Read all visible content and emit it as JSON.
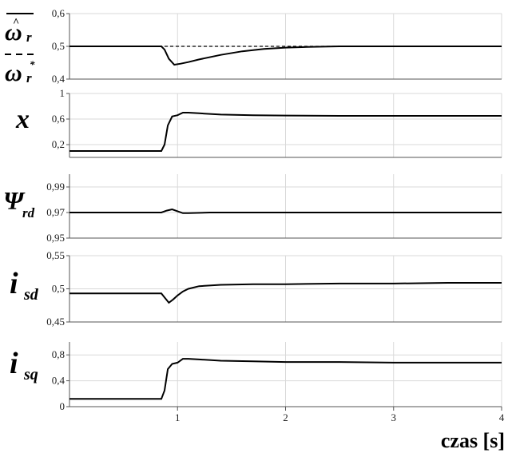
{
  "chart_data": {
    "type": "line",
    "xlabel": "czas [s]",
    "x_ticks": [
      "1",
      "2",
      "3",
      "4"
    ],
    "xlim": [
      0,
      4
    ],
    "panels": [
      {
        "id": "omega",
        "ylim": [
          0.4,
          0.6
        ],
        "yticks": [
          0.4,
          0.5,
          0.6
        ],
        "ytick_labels": [
          "0,4",
          "0,5",
          "0,6"
        ],
        "series": [
          {
            "style": "solid",
            "x": [
              0,
              0.85,
              0.88,
              0.92,
              0.97,
              1.03,
              1.1,
              1.2,
              1.4,
              1.6,
              1.8,
              2.0,
              2.2,
              2.5,
              3.0,
              4.0
            ],
            "y": [
              0.5,
              0.5,
              0.49,
              0.462,
              0.444,
              0.447,
              0.452,
              0.46,
              0.474,
              0.485,
              0.492,
              0.496,
              0.498,
              0.5,
              0.5,
              0.5
            ]
          },
          {
            "style": "dashed",
            "x": [
              0,
              4.0
            ],
            "y": [
              0.5,
              0.5
            ]
          }
        ]
      },
      {
        "id": "x",
        "label": "x",
        "ylim": [
          0,
          1
        ],
        "yticks": [
          0.2,
          0.6,
          1
        ],
        "ytick_labels": [
          "0,2",
          "0,6",
          "1"
        ],
        "series": [
          {
            "style": "solid",
            "x": [
              0,
              0.85,
              0.88,
              0.91,
              0.95,
              1.0,
              1.05,
              1.1,
              1.2,
              1.4,
              1.7,
              2.0,
              2.5,
              3.0,
              3.5,
              4.0
            ],
            "y": [
              0.1,
              0.1,
              0.2,
              0.5,
              0.64,
              0.66,
              0.7,
              0.7,
              0.69,
              0.67,
              0.66,
              0.655,
              0.65,
              0.65,
              0.65,
              0.65
            ]
          }
        ]
      },
      {
        "id": "psi",
        "ylim": [
          0.95,
          1.0
        ],
        "yticks": [
          0.95,
          0.97,
          0.99
        ],
        "ytick_labels": [
          "0,95",
          "0,97",
          "0,99"
        ],
        "series": [
          {
            "style": "solid",
            "x": [
              0,
              0.85,
              0.9,
              0.95,
              1.0,
              1.05,
              1.1,
              1.3,
              2.0,
              3.0,
              4.0
            ],
            "y": [
              0.97,
              0.97,
              0.9715,
              0.9725,
              0.971,
              0.9695,
              0.9695,
              0.97,
              0.97,
              0.97,
              0.97
            ]
          }
        ]
      },
      {
        "id": "isd",
        "ylim": [
          0.45,
          0.55
        ],
        "yticks": [
          0.45,
          0.5,
          0.55
        ],
        "ytick_labels": [
          "0,45",
          "0,5",
          "0,55"
        ],
        "series": [
          {
            "style": "solid",
            "x": [
              0,
              0.85,
              0.88,
              0.92,
              0.96,
              1.0,
              1.05,
              1.1,
              1.2,
              1.4,
              1.7,
              2.0,
              2.5,
              3.0,
              3.5,
              4.0
            ],
            "y": [
              0.493,
              0.493,
              0.487,
              0.479,
              0.484,
              0.49,
              0.496,
              0.5,
              0.504,
              0.506,
              0.507,
              0.507,
              0.508,
              0.508,
              0.509,
              0.509
            ]
          }
        ]
      },
      {
        "id": "isq",
        "ylim": [
          0,
          1.0
        ],
        "yticks": [
          0,
          0.4,
          0.8
        ],
        "ytick_labels": [
          "0",
          "0,4",
          "0,8"
        ],
        "series": [
          {
            "style": "solid",
            "x": [
              0,
              0.85,
              0.88,
              0.91,
              0.95,
              1.0,
              1.05,
              1.1,
              1.2,
              1.4,
              1.7,
              2.0,
              2.5,
              3.0,
              3.5,
              4.0
            ],
            "y": [
              0.12,
              0.12,
              0.25,
              0.58,
              0.66,
              0.68,
              0.74,
              0.74,
              0.73,
              0.71,
              0.7,
              0.69,
              0.69,
              0.68,
              0.68,
              0.68
            ]
          }
        ]
      }
    ]
  }
}
